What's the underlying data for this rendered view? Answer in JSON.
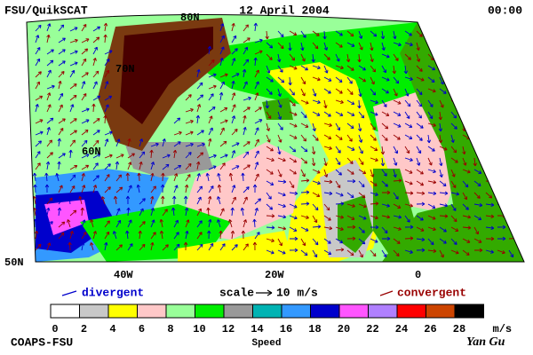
{
  "header": {
    "source": "FSU/QuikSCAT",
    "date": "12 April 2004",
    "time": "00:00"
  },
  "map": {
    "lat_labels": [
      "80N",
      "70N",
      "60N",
      "50N"
    ],
    "lon_labels": [
      "40W",
      "20W",
      "0"
    ]
  },
  "legend": {
    "divergent": "divergent",
    "scale": "scale",
    "scale_value": "10 m/s",
    "convergent": "convergent",
    "divergent_color": "#0000cc",
    "convergent_color": "#990000"
  },
  "colorbar": {
    "labels": [
      0,
      2,
      4,
      6,
      8,
      10,
      12,
      14,
      16,
      18,
      20,
      22,
      24,
      26,
      28
    ],
    "unit": "m/s",
    "title": "Speed",
    "colors": [
      "#ffffff",
      "#c8c8c8",
      "#ffff00",
      "#ffc8c8",
      "#99ff99",
      "#00ee00",
      "#999999",
      "#00b3b3",
      "#3399ff",
      "#0000cc",
      "#ff55ff",
      "#b080ff",
      "#ff0000",
      "#cc4400",
      "#000000"
    ]
  },
  "footer": {
    "left": "COAPS-FSU",
    "right": "Yan Gu"
  }
}
